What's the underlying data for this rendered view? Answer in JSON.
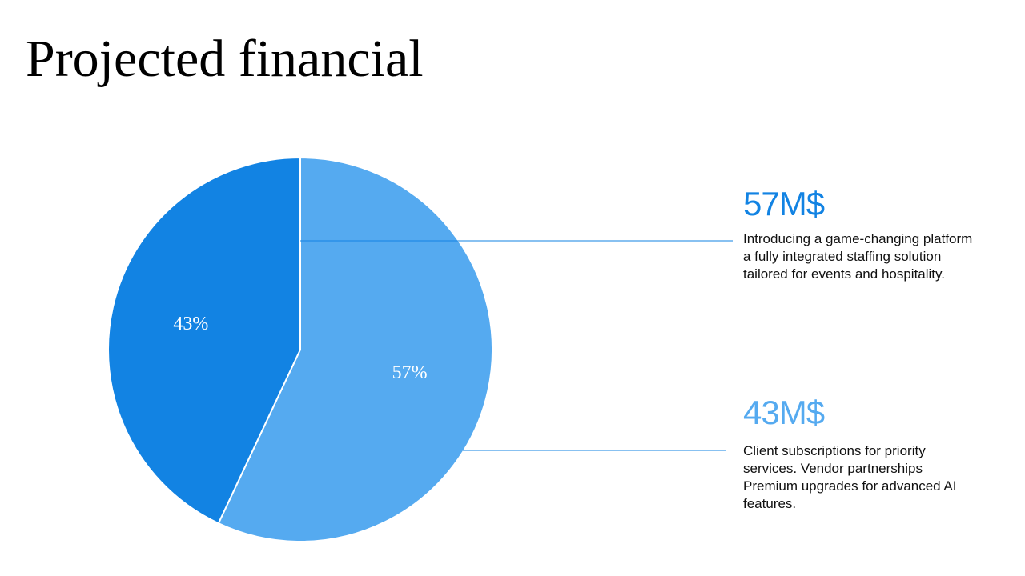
{
  "slide": {
    "title": "Projected financial"
  },
  "chart_data": {
    "type": "pie",
    "slices": [
      {
        "label": "57%",
        "value": 57,
        "color": "#55aaf0"
      },
      {
        "label": "43%",
        "value": 43,
        "color": "#1283e3"
      }
    ],
    "start_angle_deg": 0,
    "direction": "clockwise",
    "legend": "callouts-right"
  },
  "callouts": [
    {
      "value": "57M$",
      "color": "#1283e3",
      "lines": [
        "Introducing a game-changing platform",
        "a fully integrated staffing solution",
        "tailored for events and hospitality."
      ]
    },
    {
      "value": "43M$",
      "color": "#55aaf0",
      "lines": [
        "Client subscriptions for priority",
        "services. Vendor partnerships",
        "Premium upgrades for advanced AI",
        "features."
      ]
    }
  ]
}
